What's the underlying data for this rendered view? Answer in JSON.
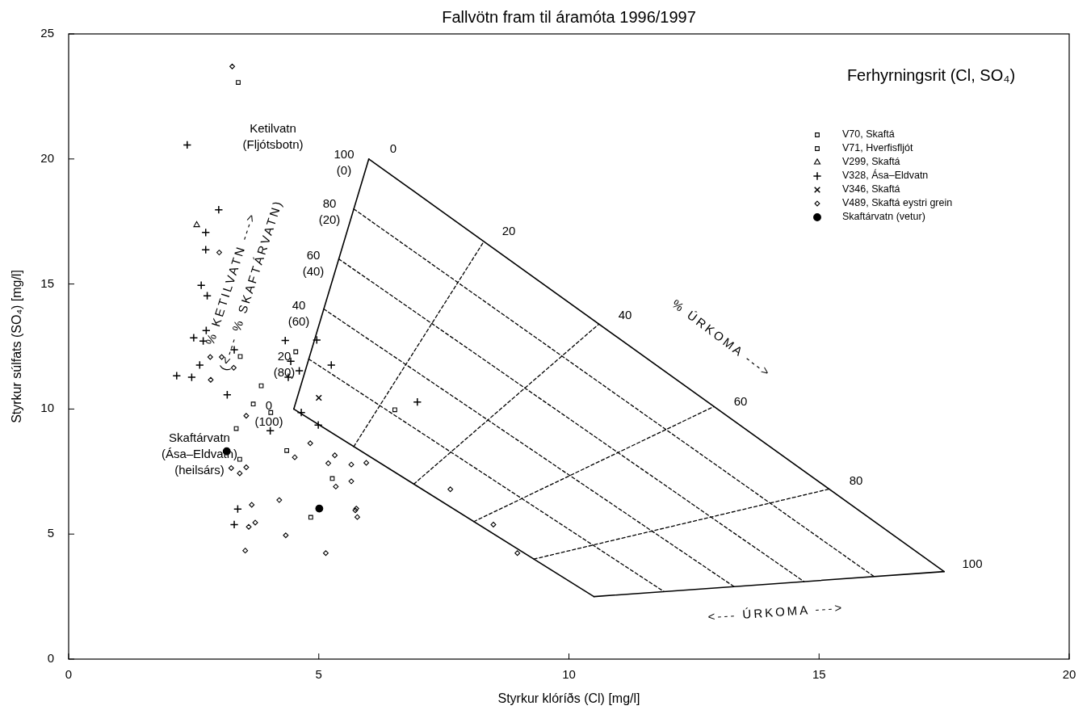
{
  "chart_data": {
    "type": "scatter",
    "title": "Fallvötn fram til áramóta 1996/1997",
    "xlabel": "Styrkur klóríðs (Cl)  [mg/l]",
    "ylabel": "Styrkur súlfats (SO₄)  [mg/l]",
    "legend_title": "Ferhyrningsrit (Cl, SO₄)",
    "legend": "top right",
    "xlim": [
      0,
      20
    ],
    "ylim": [
      0,
      25
    ],
    "xticks": [
      0,
      5,
      10,
      15,
      20
    ],
    "yticks": [
      0,
      5,
      10,
      15,
      20,
      25
    ],
    "series": [
      {
        "name": "V70, Skaftá",
        "color": "#000000",
        "marker": "square",
        "x": [
          3.39,
          3.43,
          4.54,
          3.85,
          3.69,
          4.04,
          3.35,
          4.36,
          3.42,
          5.27,
          6.52
        ],
        "values": [
          23.06,
          12.1,
          12.29,
          10.93,
          10.2,
          9.86,
          9.22,
          8.34,
          7.99,
          7.22,
          9.97
        ]
      },
      {
        "name": "V71, Hverfisfljót",
        "color": "#000000",
        "marker": "square",
        "x": [
          4.84
        ],
        "values": [
          5.67
        ]
      },
      {
        "name": "V299, Skaftá",
        "color": "#000000",
        "marker": "triangle",
        "x": [
          2.56
        ],
        "values": [
          17.36
        ]
      },
      {
        "name": "V328, Ása–Eldvatn",
        "color": "#000000",
        "marker": "cross",
        "x": [
          2.37,
          3.0,
          2.74,
          2.74,
          2.65,
          2.77,
          2.5,
          2.75,
          2.69,
          2.62,
          2.16,
          2.46,
          3.17,
          3.31,
          4.33,
          4.44,
          4.61,
          4.39,
          4.96,
          5.25,
          4.03,
          4.65,
          4.99,
          3.38,
          3.31,
          6.97
        ],
        "values": [
          20.56,
          17.97,
          17.06,
          16.37,
          14.95,
          14.53,
          12.85,
          13.14,
          12.72,
          11.76,
          11.33,
          11.27,
          10.57,
          12.37,
          12.74,
          11.91,
          11.53,
          11.27,
          12.76,
          11.76,
          9.13,
          9.86,
          9.36,
          6.0,
          5.38,
          10.28
        ]
      },
      {
        "name": "V346, Skaftá",
        "color": "#000000",
        "marker": "x",
        "x": [
          5.0
        ],
        "values": [
          10.45
        ]
      },
      {
        "name": "V489, Skaftá eystri grein",
        "color": "#000000",
        "marker": "diamond",
        "x": [
          3.27,
          3.01,
          2.83,
          3.06,
          3.3,
          2.84,
          3.55,
          4.83,
          4.52,
          5.32,
          5.19,
          5.65,
          3.25,
          3.42,
          3.55,
          5.34,
          5.65,
          5.75,
          5.73,
          5.77,
          4.21,
          3.66,
          3.6,
          3.73,
          4.34,
          3.53,
          5.14,
          5.95,
          7.63,
          8.49,
          8.97
        ],
        "values": [
          23.7,
          16.26,
          12.08,
          12.08,
          11.65,
          11.17,
          9.73,
          8.63,
          8.07,
          8.15,
          7.83,
          7.78,
          7.64,
          7.43,
          7.67,
          6.9,
          7.11,
          6.02,
          5.95,
          5.68,
          6.36,
          6.17,
          5.29,
          5.46,
          4.95,
          4.34,
          4.24,
          7.85,
          6.79,
          5.38,
          4.24
        ]
      },
      {
        "name": "Skaftárvatn (vetur)",
        "color": "#000000",
        "marker": "circle",
        "x": [
          3.16,
          5.01
        ],
        "values": [
          8.31,
          6.02
        ]
      },
      {
        "type": "line",
        "color": "#000000",
        "line_style": "solid",
        "x": [
          4.5,
          6
        ],
        "values": [
          10,
          20
        ]
      },
      {
        "type": "line",
        "color": "#000000",
        "line_style": "solid",
        "x": [
          6,
          17.5
        ],
        "values": [
          20,
          3.5
        ]
      },
      {
        "type": "line",
        "color": "#000000",
        "line_style": "solid",
        "x": [
          10.5,
          17.5
        ],
        "values": [
          2.5,
          3.5
        ]
      },
      {
        "type": "line",
        "color": "#000000",
        "line_style": "solid",
        "x": [
          4.5,
          10.5
        ],
        "values": [
          10,
          2.5
        ]
      },
      {
        "type": "line",
        "color": "#000000",
        "line_style": "dashed",
        "x": [
          4.8,
          11.9
        ],
        "values": [
          12,
          2.7
        ]
      },
      {
        "type": "line",
        "color": "#000000",
        "line_style": "dashed",
        "x": [
          5.1,
          13.3
        ],
        "values": [
          14,
          2.9
        ]
      },
      {
        "type": "line",
        "color": "#000000",
        "line_style": "dashed",
        "x": [
          5.4,
          14.7
        ],
        "values": [
          16,
          3.1
        ]
      },
      {
        "type": "line",
        "color": "#000000",
        "line_style": "dashed",
        "x": [
          5.7,
          16.1
        ],
        "values": [
          18,
          3.3
        ]
      },
      {
        "type": "line",
        "color": "#000000",
        "line_style": "dashed",
        "x": [
          5.7,
          8.3
        ],
        "values": [
          8.5,
          16.7
        ]
      },
      {
        "type": "line",
        "color": "#000000",
        "line_style": "dashed",
        "x": [
          6.9,
          10.6
        ],
        "values": [
          7,
          13.4
        ]
      },
      {
        "type": "line",
        "color": "#000000",
        "line_style": "dashed",
        "x": [
          8.1,
          12.9
        ],
        "values": [
          5.5,
          10.1
        ]
      },
      {
        "type": "line",
        "color": "#000000",
        "line_style": "dashed",
        "x": [
          9.3,
          15.2
        ],
        "values": [
          4,
          6.8
        ]
      }
    ],
    "annotations": [
      "Ketilvatn\n(Fljótsbotn)",
      "Skaftárvatn\n(Ása–Eldvatn)\n(heilsárs)",
      "100\n(0)",
      "80\n(20)",
      "60\n(40)",
      "40\n(60)",
      "20\n(80)",
      "0\n(100)",
      "0",
      "20",
      "40",
      "60",
      "80",
      "100",
      "% KETILVATN --->",
      "(<--- % SKAFTÁRVATN)",
      "% ÚRKOMA --->",
      "<--- ÚRKOMA --->"
    ]
  }
}
